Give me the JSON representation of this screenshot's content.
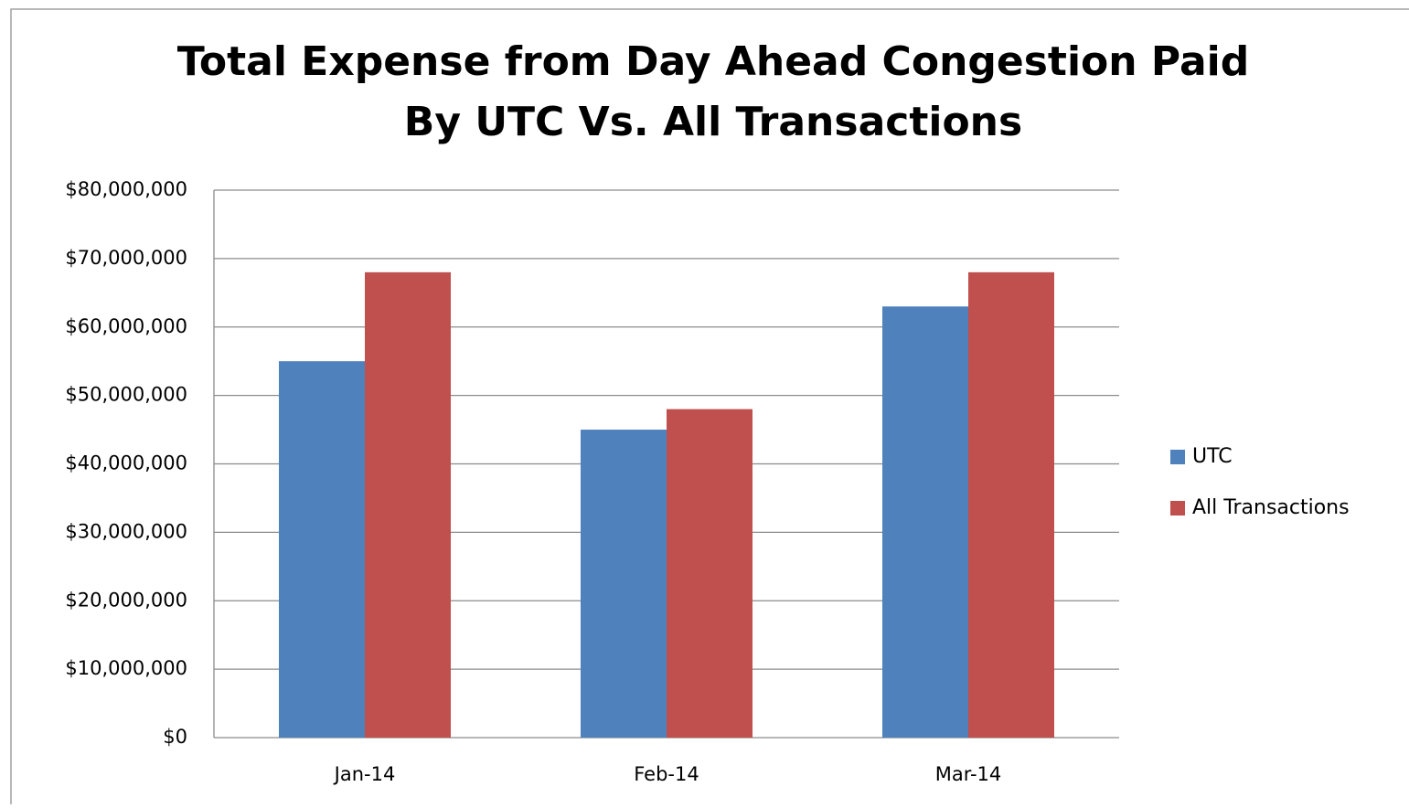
{
  "chart_data": {
    "type": "bar",
    "title": [
      "Total Expense from Day Ahead Congestion Paid",
      "By UTC Vs. All Transactions"
    ],
    "categories": [
      "Jan-14",
      "Feb-14",
      "Mar-14"
    ],
    "series": [
      {
        "name": "UTC",
        "color": "#4f81bd",
        "values": [
          55000000,
          45000000,
          63000000
        ]
      },
      {
        "name": "All Transactions",
        "color": "#c0504d",
        "values": [
          68000000,
          48000000,
          68000000
        ]
      }
    ],
    "ylim": [
      0,
      80000000
    ],
    "yticks": [
      {
        "value": 0,
        "label": "$0"
      },
      {
        "value": 10000000,
        "label": "$10,000,000"
      },
      {
        "value": 20000000,
        "label": "$20,000,000"
      },
      {
        "value": 30000000,
        "label": "$30,000,000"
      },
      {
        "value": 40000000,
        "label": "$40,000,000"
      },
      {
        "value": 50000000,
        "label": "$50,000,000"
      },
      {
        "value": 60000000,
        "label": "$60,000,000"
      },
      {
        "value": 70000000,
        "label": "$70,000,000"
      },
      {
        "value": 80000000,
        "label": "$80,000,000"
      }
    ],
    "grid": true,
    "legend": "right"
  }
}
